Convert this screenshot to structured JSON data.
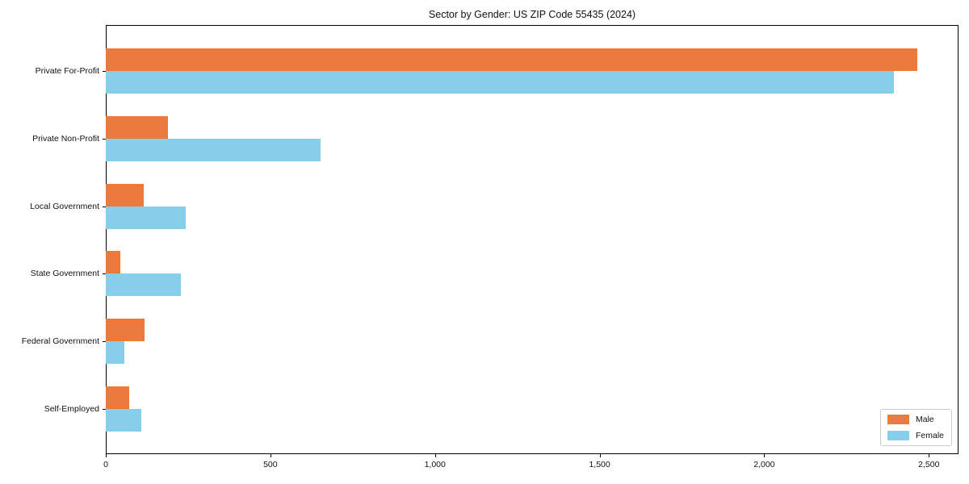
{
  "chart_data": {
    "type": "bar",
    "orientation": "horizontal",
    "title": "Sector by Gender: US ZIP Code 55435 (2024)",
    "categories": [
      "Private For-Profit",
      "Private Non-Profit",
      "Local Government",
      "State Government",
      "Federal Government",
      "Self-Employed"
    ],
    "series": [
      {
        "name": "Male",
        "color": "#EC7A3D",
        "values": [
          2465,
          190,
          115,
          44,
          118,
          71
        ]
      },
      {
        "name": "Female",
        "color": "#87CEEB",
        "values": [
          2395,
          652,
          242,
          228,
          57,
          109
        ]
      }
    ],
    "xlabel": "",
    "ylabel": "",
    "xlim": [
      0,
      2590
    ],
    "xticks": {
      "values": [
        0,
        500,
        1000,
        1500,
        2000,
        2500
      ],
      "labels": [
        "0",
        "500",
        "1,000",
        "1,500",
        "2,000",
        "2,500"
      ]
    },
    "grid": false,
    "legend": {
      "position": "lower right"
    },
    "colors": {
      "axis": "#000000",
      "text": "#111111",
      "legend_border": "#cccccc"
    }
  }
}
